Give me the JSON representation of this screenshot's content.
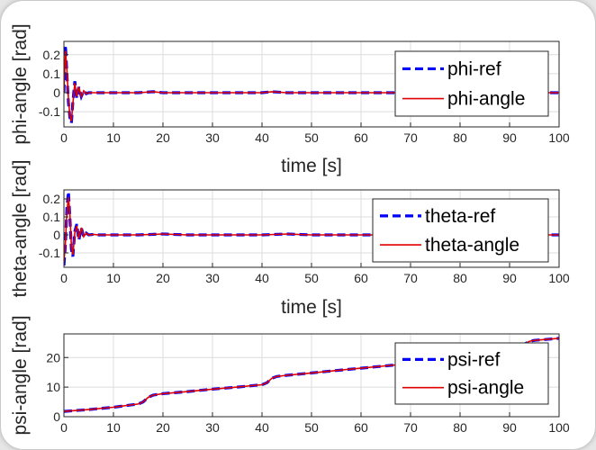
{
  "chart_data": [
    {
      "type": "line",
      "ylabel": "phi-angle [rad]",
      "xlabel": "time [s]",
      "xlim": [
        0,
        100
      ],
      "ylim": [
        -0.18,
        0.27
      ],
      "xticks": [
        0,
        10,
        20,
        30,
        40,
        50,
        60,
        70,
        80,
        90,
        100
      ],
      "yticks": [
        -0.1,
        0,
        0.1,
        0.2
      ],
      "ytick_labels": [
        "-0.1",
        "0",
        "0.1",
        "0.2"
      ],
      "grid": true,
      "legend_position": "top-right",
      "series": [
        {
          "name": "phi-ref",
          "color": "#0000ff",
          "style": "dashed",
          "x": [
            0,
            0.3,
            0.6,
            0.9,
            1.2,
            1.5,
            1.8,
            2.2,
            2.6,
            3.0,
            3.5,
            4.0,
            4.5,
            5.0,
            6,
            7,
            8,
            10,
            15,
            18,
            20,
            25,
            30,
            35,
            40,
            42,
            45,
            50,
            55,
            60,
            65,
            70,
            75,
            80,
            85,
            90,
            95,
            100
          ],
          "y": [
            0,
            0.25,
            0.1,
            -0.05,
            -0.13,
            -0.16,
            -0.05,
            0.06,
            -0.03,
            0.03,
            -0.02,
            0.01,
            -0.005,
            0,
            0,
            0,
            0,
            0,
            0,
            0.005,
            0,
            0,
            0,
            0,
            0,
            0.005,
            0,
            0,
            0,
            0,
            0,
            0,
            0,
            0,
            0,
            0,
            0,
            0
          ]
        },
        {
          "name": "phi-angle",
          "color": "#e00000",
          "style": "solid",
          "x": [
            0,
            0.3,
            0.6,
            0.9,
            1.2,
            1.5,
            1.8,
            2.2,
            2.6,
            3.0,
            3.5,
            4.0,
            4.5,
            5.0,
            6,
            7,
            8,
            10,
            15,
            18,
            20,
            25,
            30,
            35,
            40,
            42,
            45,
            50,
            55,
            60,
            65,
            70,
            75,
            80,
            85,
            90,
            95,
            100
          ],
          "y": [
            0,
            0.22,
            0.12,
            -0.03,
            -0.12,
            -0.15,
            -0.06,
            0.05,
            -0.02,
            0.03,
            -0.02,
            0.01,
            -0.005,
            0,
            0,
            0,
            0,
            0,
            0,
            0.005,
            0,
            0,
            0,
            0,
            0,
            0.005,
            0,
            0,
            0,
            0,
            0,
            0,
            0,
            0,
            0,
            0,
            0,
            0
          ]
        }
      ]
    },
    {
      "type": "line",
      "ylabel": "theta-angle [rad]",
      "xlabel": "time [s]",
      "xlim": [
        0,
        100
      ],
      "ylim": [
        -0.18,
        0.25
      ],
      "xticks": [
        0,
        10,
        20,
        30,
        40,
        50,
        60,
        70,
        80,
        90,
        100
      ],
      "yticks": [
        -0.1,
        0,
        0.1,
        0.2
      ],
      "ytick_labels": [
        "-0.1",
        "0",
        "0.1",
        "0.2"
      ],
      "grid": true,
      "legend_position": "top-right",
      "series": [
        {
          "name": "theta-ref",
          "color": "#0000ff",
          "style": "dashed",
          "x": [
            0,
            0.3,
            0.6,
            0.9,
            1.2,
            1.5,
            1.8,
            2.2,
            2.6,
            3.0,
            3.5,
            4.0,
            4.5,
            5.0,
            6,
            7,
            8,
            10,
            15,
            20,
            25,
            30,
            35,
            40,
            45,
            50,
            55,
            60,
            65,
            70,
            75,
            80,
            85,
            90,
            95,
            100
          ],
          "y": [
            -0.17,
            -0.05,
            0.15,
            0.24,
            0.1,
            -0.08,
            -0.12,
            0.02,
            0.06,
            -0.03,
            0.04,
            -0.01,
            0.01,
            0,
            0.003,
            0,
            0,
            0,
            0,
            0.005,
            0,
            0,
            0,
            0,
            0.005,
            0,
            0,
            0,
            0,
            0,
            0,
            0,
            0,
            0,
            0,
            0
          ]
        },
        {
          "name": "theta-angle",
          "color": "#e00000",
          "style": "solid",
          "x": [
            0,
            0.3,
            0.6,
            0.9,
            1.2,
            1.5,
            1.8,
            2.2,
            2.6,
            3.0,
            3.5,
            4.0,
            4.5,
            5.0,
            6,
            7,
            8,
            10,
            15,
            20,
            25,
            30,
            35,
            40,
            45,
            50,
            55,
            60,
            65,
            70,
            75,
            80,
            85,
            90,
            95,
            100
          ],
          "y": [
            -0.15,
            -0.04,
            0.13,
            0.21,
            0.12,
            -0.06,
            -0.11,
            0.01,
            0.05,
            -0.02,
            0.04,
            -0.01,
            0.01,
            0,
            0.003,
            0,
            0,
            0,
            0,
            0.005,
            0,
            0,
            0,
            0,
            0.005,
            0,
            0,
            0,
            0,
            0,
            0,
            0,
            0,
            0,
            0,
            0
          ]
        }
      ]
    },
    {
      "type": "line",
      "ylabel": "psi-angle [rad]",
      "xlabel": "",
      "xlim": [
        0,
        100
      ],
      "ylim": [
        0,
        28
      ],
      "xticks": [
        0,
        10,
        20,
        30,
        40,
        50,
        60,
        70,
        80,
        90,
        100
      ],
      "yticks": [
        0,
        10,
        20
      ],
      "ytick_labels": [
        "0",
        "10",
        "20"
      ],
      "grid": true,
      "legend_position": "top-right",
      "series": [
        {
          "name": "psi-ref",
          "color": "#0000ff",
          "style": "dashed",
          "x": [
            0,
            5,
            10,
            15,
            16,
            17,
            18,
            20,
            25,
            30,
            35,
            40,
            41,
            42,
            43,
            45,
            50,
            55,
            60,
            65,
            70,
            75,
            80,
            85,
            90,
            92,
            93,
            94,
            95,
            100
          ],
          "y": [
            1.8,
            2.4,
            3.2,
            4.3,
            5.0,
            6.5,
            7.3,
            7.8,
            8.5,
            9.3,
            10.0,
            10.8,
            11.5,
            13.0,
            13.6,
            14.0,
            14.8,
            15.6,
            16.4,
            17.2,
            18.0,
            18.9,
            19.7,
            20.6,
            21.5,
            22.5,
            24.5,
            25.5,
            25.8,
            26.5
          ]
        },
        {
          "name": "psi-angle",
          "color": "#e00000",
          "style": "solid",
          "x": [
            0,
            5,
            10,
            15,
            16,
            17,
            18,
            20,
            25,
            30,
            35,
            40,
            41,
            42,
            43,
            45,
            50,
            55,
            60,
            65,
            70,
            75,
            80,
            85,
            90,
            92,
            93,
            94,
            95,
            100
          ],
          "y": [
            1.8,
            2.4,
            3.2,
            4.3,
            5.0,
            6.5,
            7.3,
            7.8,
            8.5,
            9.3,
            10.0,
            10.8,
            11.5,
            13.0,
            13.6,
            14.0,
            14.8,
            15.6,
            16.4,
            17.2,
            18.0,
            18.9,
            19.7,
            20.6,
            21.5,
            22.5,
            24.5,
            25.5,
            25.8,
            26.5
          ]
        }
      ]
    }
  ]
}
